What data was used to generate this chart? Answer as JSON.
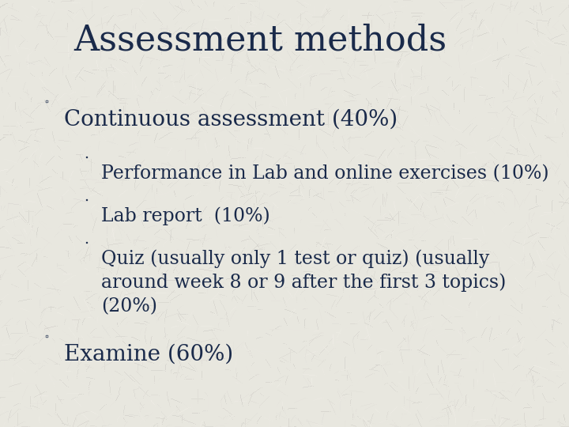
{
  "title": "Assessment methods",
  "background_color": "#e9e7e0",
  "text_color": "#1a2a4a",
  "title_fontsize": 32,
  "body_fontsize": 17,
  "bullet1_text": "Continuous assessment (40%)",
  "bullet1_fontsize": 20,
  "sub_bullets": [
    "Performance in Lab and online exercises (10%)",
    "Lab report  (10%)",
    "Quiz (usually only 1 test or quiz) (usually\naround week 8 or 9 after the first 3 topics)\n(20%)"
  ],
  "bullet2_text": "Examine (60%)",
  "bullet2_fontsize": 20,
  "font_family": "DejaVu Serif",
  "figsize": [
    7.2,
    5.4
  ],
  "dpi": 100
}
